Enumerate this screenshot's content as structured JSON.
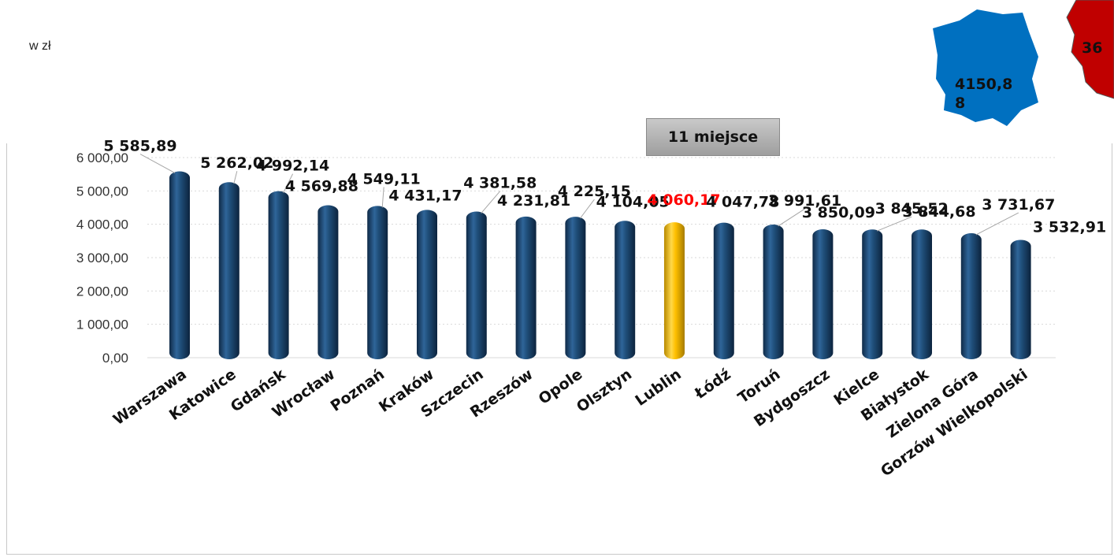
{
  "unit_label": "w zł",
  "place_badge": "11 miejsce",
  "map": {
    "value": "4150,88",
    "color": "#0070c0",
    "second_value": "36",
    "second_color": "#c00000"
  },
  "colors": {
    "bar": "#1f4e79",
    "highlight": "#ffc000",
    "highlight_label": "#ff0000",
    "grid": "#d9d9d9"
  },
  "chart_data": {
    "type": "bar",
    "categories": [
      "Warszawa",
      "Katowice",
      "Gdańsk",
      "Wrocław",
      "Poznań",
      "Kraków",
      "Szczecin",
      "Rzeszów",
      "Opole",
      "Olsztyn",
      "Lublin",
      "Łódź",
      "Toruń",
      "Bydgoszcz",
      "Kielce",
      "Białystok",
      "Zielona Góra",
      "Gorzów Wielkopolski"
    ],
    "values": [
      5585.89,
      5262.02,
      4992.14,
      4569.88,
      4549.11,
      4431.17,
      4381.58,
      4231.81,
      4225.15,
      4104.05,
      4060.17,
      4047.78,
      3991.61,
      3850.09,
      3845.52,
      3844.68,
      3731.67,
      3532.91
    ],
    "data_labels": [
      "5 585,89",
      "5 262,02",
      "4 992,14",
      "4 569,88",
      "4 549,11",
      "4 431,17",
      "4 381,58",
      "4 231,81",
      "4 225,15",
      "4 104,05",
      "4 060,17",
      "4 047,78",
      "3 991,61",
      "3 850,09",
      "3 845,52",
      "3 844,68",
      "3 731,67",
      "3 532,91"
    ],
    "highlight_category": "Lublin",
    "ylim": [
      0,
      6000
    ],
    "yticks": [
      0,
      1000,
      2000,
      3000,
      4000,
      5000,
      6000
    ],
    "ytick_labels": [
      "0,00",
      "1 000,00",
      "2 000,00",
      "3 000,00",
      "4 000,00",
      "5 000,00",
      "6 000,00"
    ],
    "grid": true,
    "legend": "none",
    "title": "",
    "xlabel": "",
    "ylabel": ""
  }
}
